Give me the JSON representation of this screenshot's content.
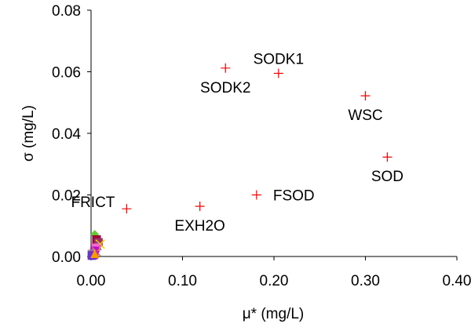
{
  "chart_data": {
    "type": "scatter",
    "xlabel": "μ* (mg/L)",
    "ylabel": "σ (mg/L)",
    "xlim": [
      0,
      0.4
    ],
    "ylim": [
      0,
      0.08
    ],
    "xticks": [
      "0.00",
      "0.10",
      "0.20",
      "0.30",
      "0.40"
    ],
    "yticks": [
      "0.00",
      "0.02",
      "0.04",
      "0.06",
      "0.08"
    ],
    "grid": false,
    "marker_color": "#ff0000",
    "labeled_points": [
      {
        "label": "SODK1",
        "x": 0.205,
        "y": 0.0595,
        "anchor": "above"
      },
      {
        "label": "SODK2",
        "x": 0.147,
        "y": 0.0612,
        "anchor": "below"
      },
      {
        "label": "WSC",
        "x": 0.3,
        "y": 0.0522,
        "anchor": "below"
      },
      {
        "label": "SOD",
        "x": 0.324,
        "y": 0.0323,
        "anchor": "below"
      },
      {
        "label": "FSOD",
        "x": 0.181,
        "y": 0.02,
        "anchor": "right"
      },
      {
        "label": "EXH2O",
        "x": 0.119,
        "y": 0.0163,
        "anchor": "below"
      },
      {
        "label": "FRICT",
        "x": 0.039,
        "y": 0.0155,
        "anchor": "left"
      }
    ],
    "cluster_points": [
      {
        "x": 0.004,
        "y": 0.0072,
        "marker": "diamond",
        "color": "#66cc33"
      },
      {
        "x": 0.006,
        "y": 0.0055,
        "marker": "square",
        "color": "#990033"
      },
      {
        "x": 0.008,
        "y": 0.0046,
        "marker": "square",
        "color": "#993366"
      },
      {
        "x": 0.01,
        "y": 0.004,
        "marker": "x",
        "color": "#ffcc00"
      },
      {
        "x": 0.007,
        "y": 0.0035,
        "marker": "triangle",
        "color": "#6666cc"
      },
      {
        "x": 0.005,
        "y": 0.0028,
        "marker": "square",
        "color": "#ff66cc"
      },
      {
        "x": 0.003,
        "y": 0.0022,
        "marker": "diamond",
        "color": "#33cccc"
      },
      {
        "x": 0.004,
        "y": 0.0018,
        "marker": "square",
        "color": "#cc00cc"
      },
      {
        "x": 0.002,
        "y": 0.0012,
        "marker": "triangle",
        "color": "#0099ff"
      },
      {
        "x": 0.006,
        "y": 0.0015,
        "marker": "x",
        "color": "#cc9933"
      },
      {
        "x": 0.001,
        "y": 0.0008,
        "marker": "square",
        "color": "#999999"
      },
      {
        "x": 0.003,
        "y": 0.0005,
        "marker": "square",
        "color": "#cc3399"
      },
      {
        "x": 0.002,
        "y": 0.0002,
        "marker": "diamond",
        "color": "#33cc99"
      },
      {
        "x": 0.001,
        "y": 0.0003,
        "marker": "square",
        "color": "#6633cc"
      },
      {
        "x": 0.004,
        "y": 0.0009,
        "marker": "triangle",
        "color": "#ff9900"
      }
    ]
  }
}
